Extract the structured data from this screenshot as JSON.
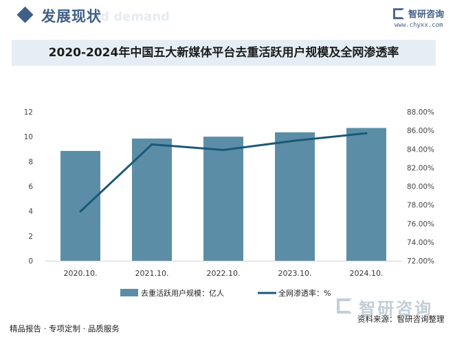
{
  "header": {
    "section_title": "发展现状",
    "ghost_text": "ld demand",
    "logo_name": "智研咨询",
    "logo_url": "www.chyxx.com"
  },
  "chart_data": {
    "type": "bar",
    "title": "2020-2024年中国五大新媒体平台去重活跃用户规模及全网渗透率",
    "categories": [
      "2020.10.",
      "2021.10.",
      "2022.10.",
      "2023.10.",
      "2024.10."
    ],
    "series": [
      {
        "name": "去重活跃用户规模：亿人",
        "type": "bar",
        "axis": "left",
        "color": "#5b8ea6",
        "values": [
          8.85,
          9.85,
          10.0,
          10.35,
          10.7
        ]
      },
      {
        "name": "全网渗透率：%",
        "type": "line",
        "axis": "right",
        "color": "#1b5777",
        "values": [
          77.3,
          84.5,
          83.9,
          84.9,
          85.7
        ]
      }
    ],
    "y_left": {
      "min": 0,
      "max": 12,
      "ticks": [
        "0",
        "2",
        "4",
        "6",
        "8",
        "10",
        "12"
      ]
    },
    "y_right": {
      "min": 72,
      "max": 88,
      "ticks": [
        "72.00%",
        "74.00%",
        "76.00%",
        "78.00%",
        "80.00%",
        "82.00%",
        "84.00%",
        "86.00%",
        "88.00%"
      ]
    },
    "grid": false,
    "legend_position": "bottom"
  },
  "footer": {
    "tags": "精品报告 · 专项定制 · 品质服务",
    "source_logo": "智研咨询",
    "source": "资料来源：智研咨询整理"
  }
}
